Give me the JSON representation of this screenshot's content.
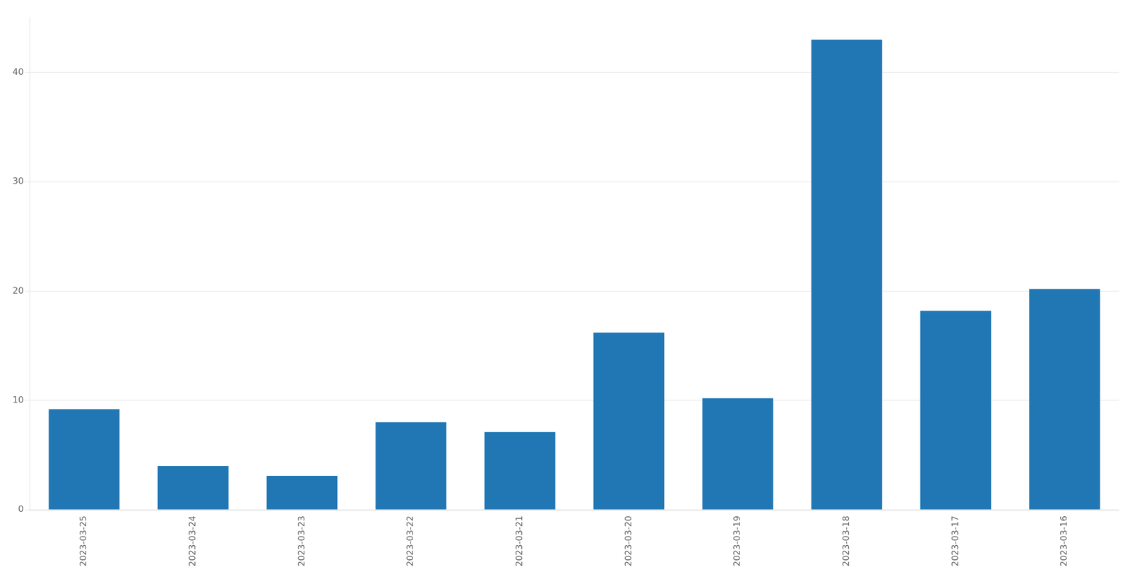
{
  "chart_data": {
    "type": "bar",
    "categories": [
      "2023-03-25",
      "2023-03-24",
      "2023-03-23",
      "2023-03-22",
      "2023-03-21",
      "2023-03-20",
      "2023-03-19",
      "2023-03-18",
      "2023-03-17",
      "2023-03-16"
    ],
    "values": [
      9.2,
      4.0,
      3.1,
      8.0,
      7.1,
      16.2,
      10.2,
      43.0,
      18.2,
      20.2
    ],
    "color": "#2077b4",
    "ylim": [
      0,
      45
    ],
    "yticks": [
      0,
      10,
      20,
      30,
      40
    ],
    "grid": true
  }
}
